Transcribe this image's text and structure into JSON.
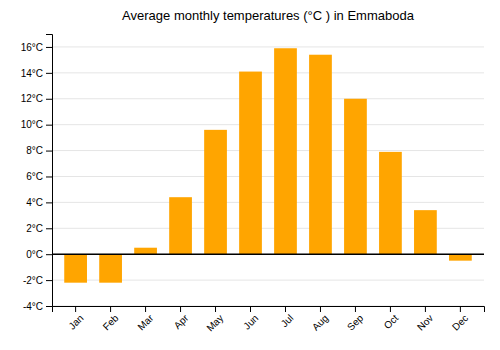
{
  "chart_data": {
    "type": "bar",
    "title": "Average monthly temperatures (°C ) in Emmaboda",
    "categories": [
      "Jan",
      "Feb",
      "Mar",
      "Apr",
      "May",
      "Jun",
      "Jul",
      "Aug",
      "Sep",
      "Oct",
      "Nov",
      "Dec"
    ],
    "values": [
      -2.2,
      -2.2,
      0.5,
      4.4,
      9.6,
      14.1,
      15.9,
      15.4,
      12.0,
      7.9,
      3.4,
      -0.5
    ],
    "color": "#FFA500",
    "ylim": [
      -4,
      17
    ],
    "yticks": [
      {
        "value": -4,
        "label": "-4°C"
      },
      {
        "value": -2,
        "label": "-2°C"
      },
      {
        "value": 0,
        "label": "0°C"
      },
      {
        "value": 2,
        "label": "2°C"
      },
      {
        "value": 4,
        "label": "4°C"
      },
      {
        "value": 6,
        "label": "6°C"
      },
      {
        "value": 8,
        "label": "8°C"
      },
      {
        "value": 10,
        "label": "10°C"
      },
      {
        "value": 12,
        "label": "12°C"
      },
      {
        "value": 14,
        "label": "14°C"
      },
      {
        "value": 16,
        "label": "16°C"
      }
    ],
    "grid": true
  }
}
